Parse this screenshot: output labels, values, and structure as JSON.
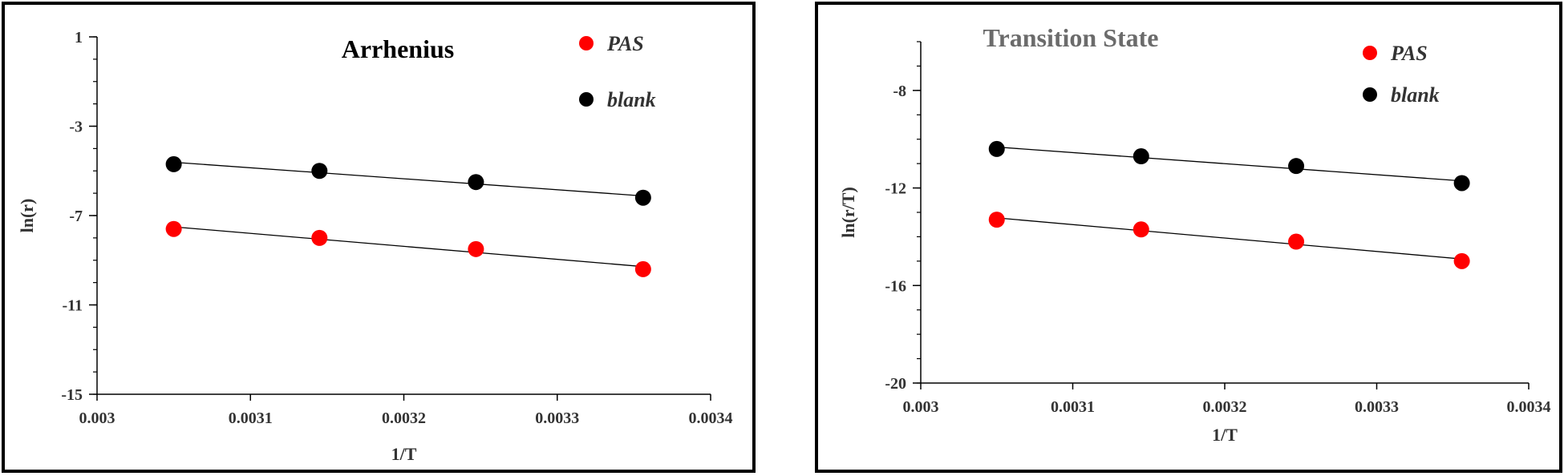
{
  "colors": {
    "pas": "#ff0000",
    "blank": "#000000",
    "axis": "#000000",
    "text": "#333333"
  },
  "chart_data": [
    {
      "type": "scatter",
      "title": "Arrhenius",
      "xlabel": "1/T",
      "ylabel": "ln(r)",
      "xlim": [
        0.003,
        0.0034
      ],
      "ylim": [
        -15,
        1
      ],
      "xticks": [
        0.003,
        0.0031,
        0.0032,
        0.0033,
        0.0034
      ],
      "xtick_labels": [
        "0.003",
        "0.0031",
        "0.0032",
        "0.0033",
        "0.0034"
      ],
      "yticks": [
        1,
        -3,
        -7,
        -11,
        -15
      ],
      "ytick_labels": [
        "1",
        "-3",
        "-7",
        "-11",
        "-15"
      ],
      "y_minor_step": 1,
      "grid": false,
      "legend_position": "top-right",
      "trendlines": true,
      "series": [
        {
          "name": "PAS",
          "color": "#ff0000",
          "x": [
            0.00305,
            0.003145,
            0.003247,
            0.003356
          ],
          "y": [
            -7.6,
            -8.0,
            -8.5,
            -9.4
          ]
        },
        {
          "name": "blank",
          "color": "#000000",
          "x": [
            0.00305,
            0.003145,
            0.003247,
            0.003356
          ],
          "y": [
            -4.7,
            -5.0,
            -5.5,
            -6.2
          ]
        }
      ]
    },
    {
      "type": "scatter",
      "title": "Transition State",
      "xlabel": "1/T",
      "ylabel": "ln(r/T)",
      "xlim": [
        0.003,
        0.0034
      ],
      "ylim": [
        -20,
        -6
      ],
      "xticks": [
        0.003,
        0.0031,
        0.0032,
        0.0033,
        0.0034
      ],
      "xtick_labels": [
        "0.003",
        "0.0031",
        "0.0032",
        "0.0033",
        "0.0034"
      ],
      "yticks": [
        -8,
        -12,
        -16,
        -20
      ],
      "ytick_labels": [
        "-8",
        "-12",
        "-16",
        "-20"
      ],
      "y_minor_step": 1,
      "grid": false,
      "legend_position": "top-right",
      "trendlines": true,
      "series": [
        {
          "name": "PAS",
          "color": "#ff0000",
          "x": [
            0.00305,
            0.003145,
            0.003247,
            0.003356
          ],
          "y": [
            -13.3,
            -13.7,
            -14.2,
            -15.0
          ]
        },
        {
          "name": "blank",
          "color": "#000000",
          "x": [
            0.00305,
            0.003145,
            0.003247,
            0.003356
          ],
          "y": [
            -10.4,
            -10.7,
            -11.1,
            -11.8
          ]
        }
      ]
    }
  ]
}
